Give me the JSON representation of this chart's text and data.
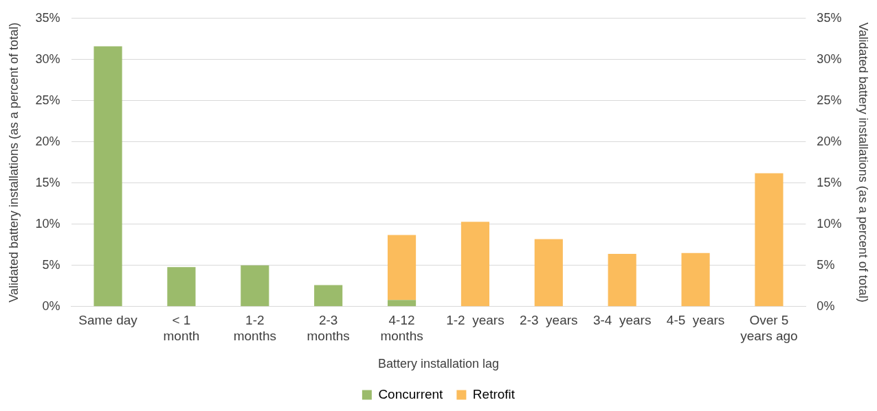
{
  "chart_data": {
    "type": "bar",
    "stacked": true,
    "xlabel": "Battery installation lag",
    "ylabel": "Validated battery installations (as a percent of total)",
    "y2label": "Validated battery installations (as a percent of total)",
    "categories": [
      "Same day",
      "< 1\nmonth",
      "1-2\nmonths",
      "2-3\nmonths",
      "4-12\nmonths",
      "1-2  years",
      "2-3  years",
      "3-4  years",
      "4-5  years",
      "Over 5\nyears ago"
    ],
    "series": [
      {
        "name": "Concurrent",
        "color": "#9bbb6b",
        "values": [
          31.6,
          4.8,
          5.0,
          2.6,
          0.8,
          null,
          null,
          null,
          null,
          null
        ]
      },
      {
        "name": "Retrofit",
        "color": "#fbbc5c",
        "values": [
          null,
          null,
          null,
          null,
          7.9,
          10.3,
          8.2,
          6.4,
          6.5,
          16.2
        ]
      }
    ],
    "ylim": [
      0,
      35
    ],
    "yticks": [
      {
        "value": 0,
        "label": "0%"
      },
      {
        "value": 5,
        "label": "5%"
      },
      {
        "value": 10,
        "label": "10%"
      },
      {
        "value": 15,
        "label": "15%"
      },
      {
        "value": 20,
        "label": "20%"
      },
      {
        "value": 25,
        "label": "25%"
      },
      {
        "value": 30,
        "label": "30%"
      },
      {
        "value": 35,
        "label": "35%"
      }
    ],
    "y2lim": [
      0,
      35
    ],
    "y2ticks": [
      {
        "value": 0,
        "label": "0%"
      },
      {
        "value": 5,
        "label": "5%"
      },
      {
        "value": 10,
        "label": "10%"
      },
      {
        "value": 15,
        "label": "15%"
      },
      {
        "value": 20,
        "label": "20%"
      },
      {
        "value": 25,
        "label": "25%"
      },
      {
        "value": 30,
        "label": "30%"
      },
      {
        "value": 35,
        "label": "35%"
      }
    ],
    "grid": "y",
    "legend": "bottom"
  }
}
